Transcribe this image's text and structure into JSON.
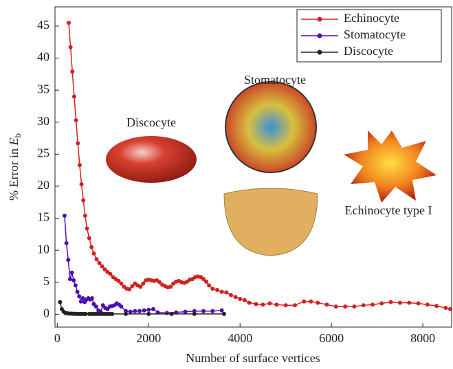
{
  "chart_data": {
    "type": "line",
    "xlabel": "Number of surface vertices",
    "ylabel": "% Error in ",
    "ylabel_var": "E",
    "ylabel_sub": "b",
    "xlim": [
      -50,
      8630
    ],
    "ylim": [
      -2,
      48
    ],
    "xticks": [
      0,
      2000,
      4000,
      6000,
      8000
    ],
    "yticks": [
      0,
      5,
      10,
      15,
      20,
      25,
      30,
      35,
      40,
      45
    ],
    "legend": "upper right",
    "annotations": [
      "Discocyte",
      "Stomatocyte",
      "Echinocyte type I"
    ],
    "series": [
      {
        "name": "Echinocyte",
        "color": "#d42020",
        "x": [
          250,
          290,
          330,
          370,
          410,
          450,
          490,
          530,
          570,
          610,
          650,
          700,
          750,
          800,
          860,
          920,
          980,
          1040,
          1100,
          1160,
          1220,
          1280,
          1340,
          1400,
          1460,
          1520,
          1580,
          1640,
          1700,
          1760,
          1820,
          1880,
          1940,
          2000,
          2060,
          2120,
          2180,
          2240,
          2300,
          2360,
          2420,
          2480,
          2540,
          2600,
          2660,
          2720,
          2780,
          2840,
          2900,
          2960,
          3020,
          3080,
          3140,
          3200,
          3260,
          3320,
          3400,
          3500,
          3600,
          3700,
          3800,
          3900,
          4000,
          4100,
          4200,
          4350,
          4500,
          4650,
          4800,
          5000,
          5200,
          5400,
          5550,
          5700,
          5900,
          6100,
          6300,
          6500,
          6700,
          6900,
          7100,
          7300,
          7500,
          7700,
          7900,
          8100,
          8300,
          8500,
          8600
        ],
        "values": [
          45.5,
          41.7,
          37.9,
          34,
          30.3,
          26.7,
          23.3,
          20.3,
          17.8,
          15.4,
          13.4,
          11.9,
          10.5,
          9.5,
          8.6,
          8,
          7.5,
          7,
          6.6,
          6.3,
          5.8,
          5.5,
          5.2,
          4.8,
          4.3,
          4.0,
          3.9,
          4.4,
          4.8,
          4.5,
          4.3,
          4.8,
          5.3,
          5.4,
          5.3,
          5.2,
          5.3,
          5.0,
          4.6,
          4.4,
          4.2,
          4.3,
          4.8,
          5.1,
          5.2,
          5.0,
          4.9,
          5.1,
          5.4,
          5.5,
          5.8,
          5.9,
          5.8,
          5.5,
          5.1,
          4.5,
          4.0,
          3.8,
          3.5,
          3.4,
          3.0,
          2.7,
          2.4,
          2.2,
          1.8,
          1.6,
          1.5,
          1.7,
          1.5,
          1.4,
          1.4,
          2.0,
          2.0,
          1.8,
          1.5,
          1.2,
          1.2,
          1.2,
          1.4,
          1.5,
          1.7,
          1.9,
          1.8,
          1.8,
          1.7,
          1.5,
          1.3,
          1.0,
          0.8
        ]
      },
      {
        "name": "Stomatocyte",
        "color": "#4b0fb5",
        "x": [
          160,
          200,
          240,
          280,
          320,
          360,
          400,
          440,
          480,
          520,
          560,
          600,
          640,
          680,
          720,
          760,
          800,
          850,
          900,
          950,
          1000,
          1050,
          1100,
          1150,
          1200,
          1250,
          1300,
          1350,
          1400,
          1500,
          1600,
          1700,
          1800,
          1900,
          2000,
          2100,
          2200,
          2400,
          2600,
          2800,
          3000,
          3200,
          3400,
          3600
        ],
        "values": [
          15.4,
          11.1,
          8.5,
          5.5,
          6.5,
          5.3,
          4.5,
          3.5,
          2.8,
          2.0,
          2.5,
          1.9,
          2.3,
          2.5,
          2.3,
          2.5,
          1.6,
          1.2,
          0.6,
          0.4,
          1.4,
          1.0,
          0.8,
          1.2,
          1.3,
          1.4,
          1.7,
          1.5,
          1.2,
          0.5,
          0.4,
          0.5,
          0.5,
          0.6,
          0.7,
          0.8,
          0.3,
          0.2,
          0.3,
          0.4,
          0.5,
          0.5,
          0.5,
          0.6
        ]
      },
      {
        "name": "Discocyte",
        "color": "#222222",
        "x": [
          60,
          100,
          140,
          180,
          220,
          260,
          300,
          340,
          380,
          420,
          460,
          500,
          540,
          580,
          620,
          700,
          750,
          800,
          850,
          900,
          950,
          1000,
          1050,
          1100,
          1150,
          1200,
          1500,
          2000,
          2500,
          3000,
          3650
        ],
        "values": [
          1.9,
          0.8,
          0.4,
          0.2,
          0.15,
          0.1,
          0.1,
          0.08,
          0.08,
          0.05,
          0.05,
          0.05,
          0.05,
          0.05,
          0.05,
          0.05,
          0.05,
          0.05,
          0.05,
          0.05,
          0.05,
          0.05,
          0.05,
          0.05,
          0.05,
          0.05,
          0.05,
          0.05,
          0.05,
          0.05,
          0.05
        ]
      }
    ]
  }
}
